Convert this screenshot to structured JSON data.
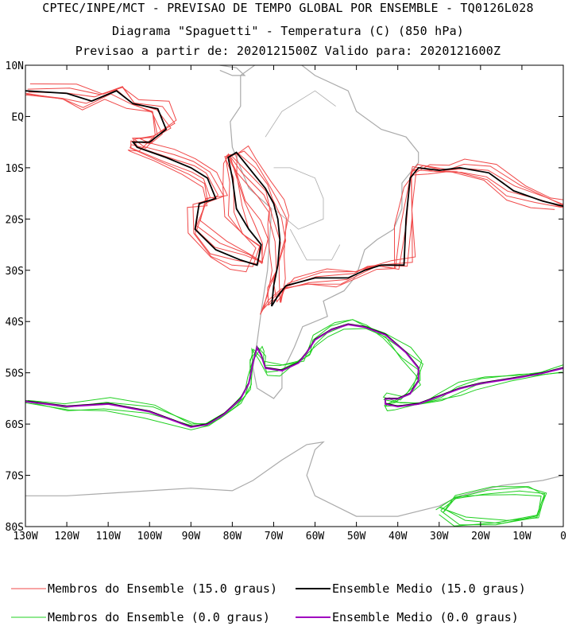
{
  "header": {
    "line1": "CPTEC/INPE/MCT - PREVISAO DE TEMPO GLOBAL POR ENSEMBLE - TQ0126L028",
    "line2": "Diagrama \"Spaguetti\" - Temperatura (C) (850 hPa)",
    "line3": "Previsao a partir de: 2020121500Z  Valido para: 2020121600Z"
  },
  "chart_data": {
    "type": "line",
    "title": "Diagrama \"Spaguetti\" - Temperatura (C) (850 hPa)",
    "xlim": [
      -130,
      0
    ],
    "ylim": [
      -80,
      10
    ],
    "x_tick_values": [
      -130,
      -120,
      -110,
      -100,
      -90,
      -80,
      -70,
      -60,
      -50,
      -40,
      -30,
      -20,
      -10,
      0
    ],
    "x_tick_labels": [
      "130W",
      "120W",
      "110W",
      "100W",
      "90W",
      "80W",
      "70W",
      "60W",
      "50W",
      "40W",
      "30W",
      "20W",
      "10W",
      "0"
    ],
    "y_tick_values": [
      10,
      0,
      -10,
      -20,
      -30,
      -40,
      -50,
      -60,
      -70,
      -80
    ],
    "y_tick_labels": [
      "10N",
      "EQ",
      "10S",
      "20S",
      "30S",
      "40S",
      "50S",
      "60S",
      "70S",
      "80S"
    ],
    "grid": false,
    "colors": {
      "members_15": "#f04848",
      "mean_15": "#000000",
      "members_0": "#20d020",
      "mean_0": "#a000c0",
      "coast": "#aaaaaa"
    },
    "series": [
      {
        "name": "Ensemble Medio (15.0 graus)",
        "color": "#000000",
        "paths": [
          [
            [
              -130,
              5
            ],
            [
              -120,
              4.5
            ],
            [
              -114,
              3
            ],
            [
              -108,
              5
            ],
            [
              -104,
              2.5
            ],
            [
              -98,
              1.5
            ],
            [
              -96,
              -2.5
            ],
            [
              -100,
              -5
            ],
            [
              -104,
              -5
            ],
            [
              -103,
              -6
            ],
            [
              -96,
              -8
            ],
            [
              -90,
              -10
            ],
            [
              -86,
              -12
            ],
            [
              -84,
              -16
            ],
            [
              -88,
              -17
            ],
            [
              -89,
              -22
            ],
            [
              -84,
              -26
            ],
            [
              -78,
              -28
            ],
            [
              -74,
              -29
            ],
            [
              -73,
              -25
            ],
            [
              -76,
              -22
            ],
            [
              -79,
              -18
            ],
            [
              -80,
              -12
            ],
            [
              -81,
              -8
            ],
            [
              -79,
              -7
            ],
            [
              -76,
              -10
            ],
            [
              -72,
              -14
            ],
            [
              -70,
              -17
            ],
            [
              -69,
              -20
            ],
            [
              -68.5,
              -24
            ],
            [
              -69,
              -29
            ],
            [
              -70,
              -33
            ],
            [
              -70.5,
              -37
            ],
            [
              -69,
              -35
            ],
            [
              -67,
              -33
            ],
            [
              -60,
              -31.5
            ],
            [
              -52,
              -31.5
            ],
            [
              -48,
              -30
            ],
            [
              -44,
              -29
            ],
            [
              -38.5,
              -29
            ],
            [
              -38,
              -20
            ],
            [
              -37,
              -12
            ],
            [
              -35,
              -10
            ],
            [
              -30,
              -10.5
            ],
            [
              -25,
              -10
            ],
            [
              -18,
              -11
            ],
            [
              -12,
              -14.5
            ],
            [
              -5,
              -16.5
            ],
            [
              0,
              -17.5
            ]
          ],
          [
            [
              -130,
              -55.5
            ],
            [
              -120,
              -56.5
            ],
            [
              -110,
              -56
            ],
            [
              -100,
              -57.5
            ],
            [
              -90,
              -60.5
            ],
            [
              -86,
              -60
            ],
            [
              -82,
              -58
            ],
            [
              -78,
              -55
            ],
            [
              -76,
              -52
            ],
            [
              -75,
              -48
            ],
            [
              -74,
              -45
            ],
            [
              -73,
              -46.5
            ],
            [
              -72,
              -49
            ],
            [
              -68,
              -49.5
            ],
            [
              -64,
              -48
            ],
            [
              -62,
              -46
            ],
            [
              -60,
              -43.5
            ],
            [
              -56,
              -41.5
            ],
            [
              -52,
              -40.5
            ],
            [
              -48,
              -41
            ],
            [
              -43,
              -42.5
            ],
            [
              -38,
              -46
            ],
            [
              -35,
              -49
            ],
            [
              -35,
              -51.5
            ],
            [
              -37,
              -54
            ],
            [
              -40,
              -55
            ],
            [
              -43,
              -55
            ],
            [
              -43,
              -56
            ],
            [
              -40,
              -56.5
            ],
            [
              -35,
              -56
            ],
            [
              -30,
              -54.5
            ],
            [
              -25,
              -53
            ],
            [
              -20,
              -52
            ],
            [
              -12,
              -51
            ],
            [
              -5,
              -50
            ],
            [
              0,
              -49
            ]
          ]
        ]
      },
      {
        "name": "Ensemble Medio (0.0 graus)",
        "color": "#a000c0",
        "paths": [
          [
            [
              -130,
              -55.6
            ],
            [
              -120,
              -56.6
            ],
            [
              -110,
              -56.1
            ],
            [
              -100,
              -57.6
            ],
            [
              -90,
              -60.6
            ],
            [
              -86,
              -60.1
            ],
            [
              -82,
              -58.1
            ],
            [
              -78,
              -55.1
            ],
            [
              -76,
              -52.1
            ],
            [
              -75,
              -48.1
            ],
            [
              -74,
              -45.1
            ],
            [
              -73,
              -46.6
            ],
            [
              -72,
              -49.1
            ],
            [
              -68,
              -49.6
            ],
            [
              -64,
              -48.1
            ],
            [
              -62,
              -46.1
            ],
            [
              -60,
              -43.6
            ],
            [
              -56,
              -41.6
            ],
            [
              -52,
              -40.6
            ],
            [
              -48,
              -41.1
            ],
            [
              -43,
              -42.6
            ],
            [
              -38,
              -46.1
            ],
            [
              -35,
              -49.1
            ],
            [
              -35,
              -51.6
            ],
            [
              -37,
              -54.1
            ],
            [
              -40,
              -55.1
            ],
            [
              -43,
              -55.1
            ],
            [
              -43,
              -56.1
            ],
            [
              -40,
              -56.6
            ],
            [
              -35,
              -56.1
            ],
            [
              -30,
              -54.6
            ],
            [
              -25,
              -53.1
            ],
            [
              -20,
              -52.1
            ],
            [
              -12,
              -51.1
            ],
            [
              -5,
              -50.1
            ],
            [
              0,
              -49.1
            ]
          ]
        ]
      },
      {
        "name": "Membros do Ensemble (15.0 graus)",
        "color": "#f04848",
        "member_offsets_deg": [
          -2.0,
          -1.2,
          -0.6,
          0.6,
          1.2,
          2.0
        ]
      },
      {
        "name": "Membros do Ensemble (0.0 graus)",
        "color": "#20d020",
        "member_offsets_deg": [
          -0.8,
          -0.4,
          0.4,
          0.8
        ]
      }
    ],
    "legend": {
      "position": "bottom",
      "entries": [
        {
          "label": "Membros do Ensemble (15.0 graus)",
          "color": "#f04848",
          "width": 1
        },
        {
          "label": "Ensemble Medio (15.0 graus)",
          "color": "#000000",
          "width": 2
        },
        {
          "label": "Membros do Ensemble (0.0 graus)",
          "color": "#20d020",
          "width": 1
        },
        {
          "label": "Ensemble Medio (0.0 graus)",
          "color": "#a000c0",
          "width": 2
        }
      ]
    }
  }
}
